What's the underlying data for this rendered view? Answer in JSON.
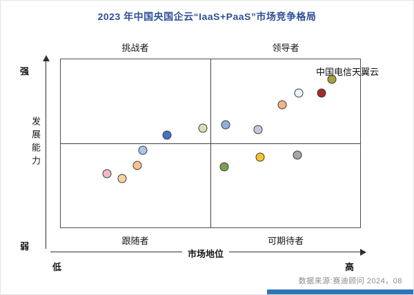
{
  "title": "2023 年中国央国企云“IaaS+PaaS”市场竞争格局",
  "source": "数据来源:赛迪顾问 2024，08",
  "accent_color": "#2e75b6",
  "chart_data": {
    "type": "scatter",
    "title": "2023 年中国央国企云“IaaS+PaaS”市场竞争格局",
    "subtitle": "",
    "legend": [],
    "grid": "quadrant",
    "quadrants": {
      "top_left": "挑战者",
      "top_right": "领导者",
      "bottom_left": "跟随者",
      "bottom_right": "可期待者"
    },
    "axes": {
      "y_label": "发展能力",
      "y_high": "强",
      "y_low": "弱",
      "x_label": "市场地位",
      "x_low": "低",
      "x_high": "高",
      "x_range": [
        0,
        100
      ],
      "y_range": [
        0,
        100
      ]
    },
    "annotation": "中国电信天翼云",
    "points": [
      {
        "x": 15.5,
        "y": 32,
        "color": "#f2b9c4",
        "label": ""
      },
      {
        "x": 20.5,
        "y": 29,
        "color": "#f9d3a0",
        "label": ""
      },
      {
        "x": 25.5,
        "y": 37,
        "color": "#fac08f",
        "label": ""
      },
      {
        "x": 27.5,
        "y": 46,
        "color": "#a9c6ea",
        "label": ""
      },
      {
        "x": 35.5,
        "y": 55,
        "color": "#4472c4",
        "label": ""
      },
      {
        "x": 47.5,
        "y": 59,
        "color": "#cde4b5",
        "label": ""
      },
      {
        "x": 54.5,
        "y": 36,
        "color": "#7e9e50",
        "label": ""
      },
      {
        "x": 55.0,
        "y": 61,
        "color": "#92aedc",
        "label": ""
      },
      {
        "x": 66.5,
        "y": 42,
        "color": "#f6c42e",
        "label": ""
      },
      {
        "x": 66.0,
        "y": 58,
        "color": "#c9c6e4",
        "label": ""
      },
      {
        "x": 74.0,
        "y": 73,
        "color": "#f2b385",
        "label": ""
      },
      {
        "x": 79.0,
        "y": 43,
        "color": "#a6a6a6",
        "label": ""
      },
      {
        "x": 79.5,
        "y": 80,
        "color": "#eaf4fa",
        "label": ""
      },
      {
        "x": 87.0,
        "y": 80,
        "color": "#a12c2c",
        "label": ""
      },
      {
        "x": 90.5,
        "y": 88,
        "color": "#a2a43b",
        "label": "中国电信天翼云"
      }
    ]
  }
}
